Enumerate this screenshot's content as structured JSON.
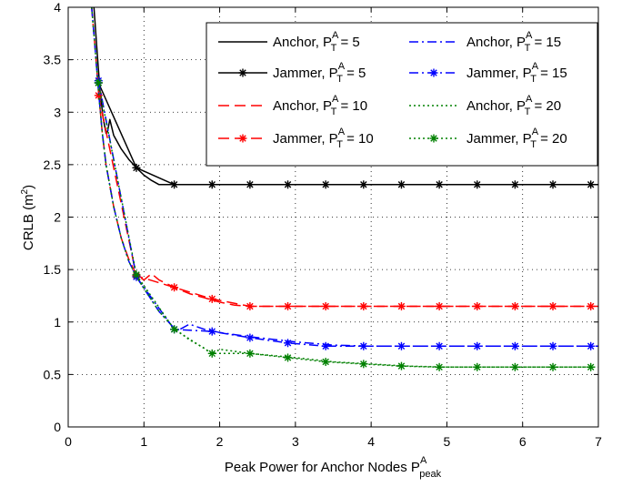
{
  "chart_data": {
    "type": "line",
    "xlabel": {
      "main": "Peak Power for Anchor Nodes P",
      "sup": "A",
      "sub": "peak"
    },
    "ylabel": {
      "main": "CRLB (m",
      "sup": "2",
      "tail": ")"
    },
    "xlim": [
      0,
      7
    ],
    "ylim": [
      0,
      4
    ],
    "xticks": [
      "0",
      "1",
      "2",
      "3",
      "4",
      "5",
      "6",
      "7"
    ],
    "yticks": [
      "0",
      "0.5",
      "1",
      "1.5",
      "2",
      "2.5",
      "3",
      "3.5",
      "4"
    ],
    "grid": true,
    "legend_position": "top-right",
    "series": [
      {
        "name": "Anchor, P_T^A = 5",
        "legend": {
          "pre": "Anchor, P",
          "sup": "A",
          "sub": "T",
          "post": " = 5"
        },
        "color": "#000000",
        "dash": "solid",
        "marker": "none",
        "x": [
          0.34,
          0.38,
          0.42,
          0.46,
          0.5,
          0.52,
          0.55,
          0.6,
          0.7,
          0.8,
          0.9,
          1.0,
          1.1,
          1.2,
          1.3,
          1.5,
          2.0,
          3.0,
          4.0,
          5.0,
          6.0,
          7.0
        ],
        "y": [
          4.0,
          3.6,
          3.2,
          2.95,
          2.8,
          2.82,
          2.93,
          2.78,
          2.65,
          2.55,
          2.47,
          2.4,
          2.35,
          2.31,
          2.31,
          2.31,
          2.31,
          2.31,
          2.31,
          2.31,
          2.31,
          2.31
        ]
      },
      {
        "name": "Jammer, P_T^A = 5",
        "legend": {
          "pre": "Jammer, P",
          "sup": "A",
          "sub": "T",
          "post": " = 5"
        },
        "color": "#000000",
        "dash": "solid",
        "marker": "asterisk",
        "x": [
          0.4,
          0.9,
          1.4,
          1.9,
          2.4,
          2.9,
          3.4,
          3.9,
          4.4,
          4.9,
          5.4,
          5.9,
          6.4,
          6.9
        ],
        "y": [
          3.28,
          2.47,
          2.31,
          2.31,
          2.31,
          2.31,
          2.31,
          2.31,
          2.31,
          2.31,
          2.31,
          2.31,
          2.31,
          2.31
        ]
      },
      {
        "name": "Anchor, P_T^A = 10",
        "legend": {
          "pre": "Anchor, P",
          "sup": "A",
          "sub": "T",
          "post": " = 10"
        },
        "color": "#ff0000",
        "dash": "longdash",
        "marker": "none",
        "x": [
          0.31,
          0.35,
          0.4,
          0.45,
          0.5,
          0.6,
          0.7,
          0.8,
          0.9,
          1.0,
          1.1,
          1.2,
          1.4,
          1.6,
          1.8,
          2.0,
          2.2,
          2.4,
          3.0,
          4.0,
          5.0,
          6.0,
          7.0
        ],
        "y": [
          4.0,
          3.65,
          3.2,
          2.8,
          2.5,
          2.1,
          1.8,
          1.6,
          1.45,
          1.4,
          1.46,
          1.4,
          1.33,
          1.27,
          1.23,
          1.19,
          1.16,
          1.15,
          1.15,
          1.15,
          1.15,
          1.15,
          1.15
        ]
      },
      {
        "name": "Jammer, P_T^A = 10",
        "legend": {
          "pre": "Jammer, P",
          "sup": "A",
          "sub": "T",
          "post": " = 10"
        },
        "color": "#ff0000",
        "dash": "longdash",
        "marker": "asterisk",
        "x": [
          0.4,
          0.9,
          1.4,
          1.9,
          2.4,
          2.9,
          3.4,
          3.9,
          4.4,
          4.9,
          5.4,
          5.9,
          6.4,
          6.9
        ],
        "y": [
          3.16,
          1.44,
          1.33,
          1.22,
          1.15,
          1.15,
          1.15,
          1.15,
          1.15,
          1.15,
          1.15,
          1.15,
          1.15,
          1.15
        ]
      },
      {
        "name": "Anchor, P_T^A = 15",
        "legend": {
          "pre": "Anchor, P",
          "sup": "A",
          "sub": "T",
          "post": " = 15"
        },
        "color": "#0000ff",
        "dash": "dashdot",
        "marker": "none",
        "x": [
          0.31,
          0.35,
          0.4,
          0.45,
          0.5,
          0.6,
          0.7,
          0.8,
          0.9,
          1.0,
          1.2,
          1.4,
          1.45,
          1.6,
          1.8,
          2.0,
          2.4,
          3.0,
          3.5,
          4.0,
          5.0,
          6.0,
          7.0
        ],
        "y": [
          4.0,
          3.65,
          3.2,
          2.8,
          2.5,
          2.1,
          1.8,
          1.58,
          1.43,
          1.32,
          1.1,
          0.94,
          0.92,
          0.98,
          0.93,
          0.9,
          0.86,
          0.81,
          0.78,
          0.77,
          0.77,
          0.77,
          0.77
        ]
      },
      {
        "name": "Jammer, P_T^A = 15",
        "legend": {
          "pre": "Jammer, P",
          "sup": "A",
          "sub": "T",
          "post": " = 15"
        },
        "color": "#0000ff",
        "dash": "dashdot",
        "marker": "asterisk",
        "x": [
          0.4,
          0.9,
          1.4,
          1.9,
          2.4,
          2.9,
          3.4,
          3.9,
          4.4,
          4.9,
          5.4,
          5.9,
          6.4,
          6.9
        ],
        "y": [
          3.3,
          1.43,
          0.93,
          0.91,
          0.85,
          0.8,
          0.77,
          0.77,
          0.77,
          0.77,
          0.77,
          0.77,
          0.77,
          0.77
        ]
      },
      {
        "name": "Anchor, P_T^A = 20",
        "legend": {
          "pre": "Anchor, P",
          "sup": "A",
          "sub": "T",
          "post": " = 20"
        },
        "color": "#008000",
        "dash": "dotted",
        "marker": "none",
        "x": [
          0.31,
          0.35,
          0.4,
          0.45,
          0.5,
          0.6,
          0.7,
          0.8,
          0.9,
          1.0,
          1.2,
          1.4,
          1.6,
          1.8,
          1.9,
          2.0,
          2.4,
          3.0,
          3.5,
          4.0,
          4.5,
          5.0,
          6.0,
          7.0
        ],
        "y": [
          4.0,
          3.65,
          3.2,
          2.8,
          2.5,
          2.1,
          1.8,
          1.58,
          1.43,
          1.32,
          1.1,
          0.94,
          0.83,
          0.75,
          0.69,
          0.74,
          0.7,
          0.66,
          0.62,
          0.6,
          0.58,
          0.57,
          0.57,
          0.57
        ]
      },
      {
        "name": "Jammer, P_T^A = 20",
        "legend": {
          "pre": "Jammer, P",
          "sup": "A",
          "sub": "T",
          "post": " = 20"
        },
        "color": "#008000",
        "dash": "dotted",
        "marker": "asterisk",
        "x": [
          0.4,
          0.9,
          1.4,
          1.9,
          2.4,
          2.9,
          3.4,
          3.9,
          4.4,
          4.9,
          5.4,
          5.9,
          6.4,
          6.9
        ],
        "y": [
          3.28,
          1.45,
          0.93,
          0.7,
          0.7,
          0.66,
          0.62,
          0.6,
          0.58,
          0.57,
          0.57,
          0.57,
          0.57,
          0.57
        ]
      }
    ]
  }
}
